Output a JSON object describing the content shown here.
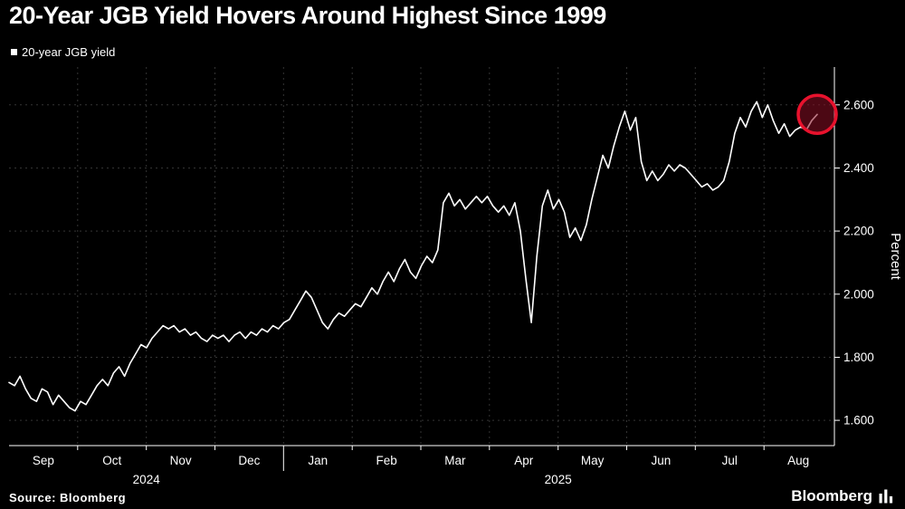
{
  "header": {
    "title": "20-Year JGB Yield Hovers Around Highest Since 1999"
  },
  "legend": {
    "marker": "square",
    "label": "20-year JGB yield"
  },
  "chart_data": {
    "type": "line",
    "title": "20-Year JGB Yield Hovers Around Highest Since 1999",
    "xlabel": "",
    "ylabel": "Percent",
    "ylim": [
      1.52,
      2.72
    ],
    "grid": true,
    "legend_position": "top-left",
    "y_ticks": [
      1.6,
      1.8,
      2.0,
      2.2,
      2.4,
      2.6
    ],
    "y_tick_labels": [
      "1.600",
      "1.800",
      "2.000",
      "2.200",
      "2.400",
      "2.600"
    ],
    "x_months": [
      "Sep",
      "Oct",
      "Nov",
      "Dec",
      "Jan",
      "Feb",
      "Mar",
      "Apr",
      "May",
      "Jun",
      "Jul",
      "Aug"
    ],
    "x_years": [
      {
        "label": "2024",
        "span": [
          0,
          4
        ]
      },
      {
        "label": "2025",
        "span": [
          4,
          12
        ]
      }
    ],
    "year_divider_index": 4,
    "colors": {
      "background": "#000000",
      "line": "#ffffff",
      "grid": "#343434",
      "axis": "#ffffff",
      "highlight_stroke": "#e8122d",
      "highlight_fill": "#8b0f24"
    },
    "series": [
      {
        "name": "20-year JGB yield",
        "color": "#ffffff",
        "values": [
          1.72,
          1.71,
          1.74,
          1.7,
          1.67,
          1.66,
          1.7,
          1.69,
          1.65,
          1.68,
          1.66,
          1.64,
          1.63,
          1.66,
          1.65,
          1.68,
          1.71,
          1.73,
          1.71,
          1.75,
          1.77,
          1.74,
          1.78,
          1.81,
          1.84,
          1.83,
          1.86,
          1.88,
          1.9,
          1.89,
          1.9,
          1.88,
          1.89,
          1.87,
          1.88,
          1.86,
          1.85,
          1.87,
          1.86,
          1.87,
          1.85,
          1.87,
          1.88,
          1.86,
          1.88,
          1.87,
          1.89,
          1.88,
          1.9,
          1.89,
          1.91,
          1.92,
          1.95,
          1.98,
          2.01,
          1.99,
          1.95,
          1.91,
          1.89,
          1.92,
          1.94,
          1.93,
          1.95,
          1.97,
          1.96,
          1.99,
          2.02,
          2.0,
          2.04,
          2.07,
          2.04,
          2.08,
          2.11,
          2.07,
          2.05,
          2.09,
          2.12,
          2.1,
          2.14,
          2.29,
          2.32,
          2.28,
          2.3,
          2.27,
          2.29,
          2.31,
          2.29,
          2.31,
          2.28,
          2.26,
          2.28,
          2.25,
          2.29,
          2.2,
          2.05,
          1.91,
          2.12,
          2.28,
          2.33,
          2.27,
          2.3,
          2.26,
          2.18,
          2.21,
          2.17,
          2.22,
          2.3,
          2.37,
          2.44,
          2.4,
          2.47,
          2.53,
          2.58,
          2.52,
          2.56,
          2.42,
          2.36,
          2.39,
          2.36,
          2.38,
          2.41,
          2.39,
          2.41,
          2.4,
          2.38,
          2.36,
          2.34,
          2.35,
          2.33,
          2.34,
          2.36,
          2.42,
          2.51,
          2.56,
          2.53,
          2.58,
          2.61,
          2.56,
          2.6,
          2.55,
          2.51,
          2.54,
          2.5,
          2.52,
          2.53,
          2.52,
          2.55,
          2.57
        ]
      }
    ],
    "highlight": {
      "target": "last-point",
      "shape": "circle"
    }
  },
  "footer": {
    "source": "Source: Bloomberg",
    "brand": "Bloomberg"
  }
}
